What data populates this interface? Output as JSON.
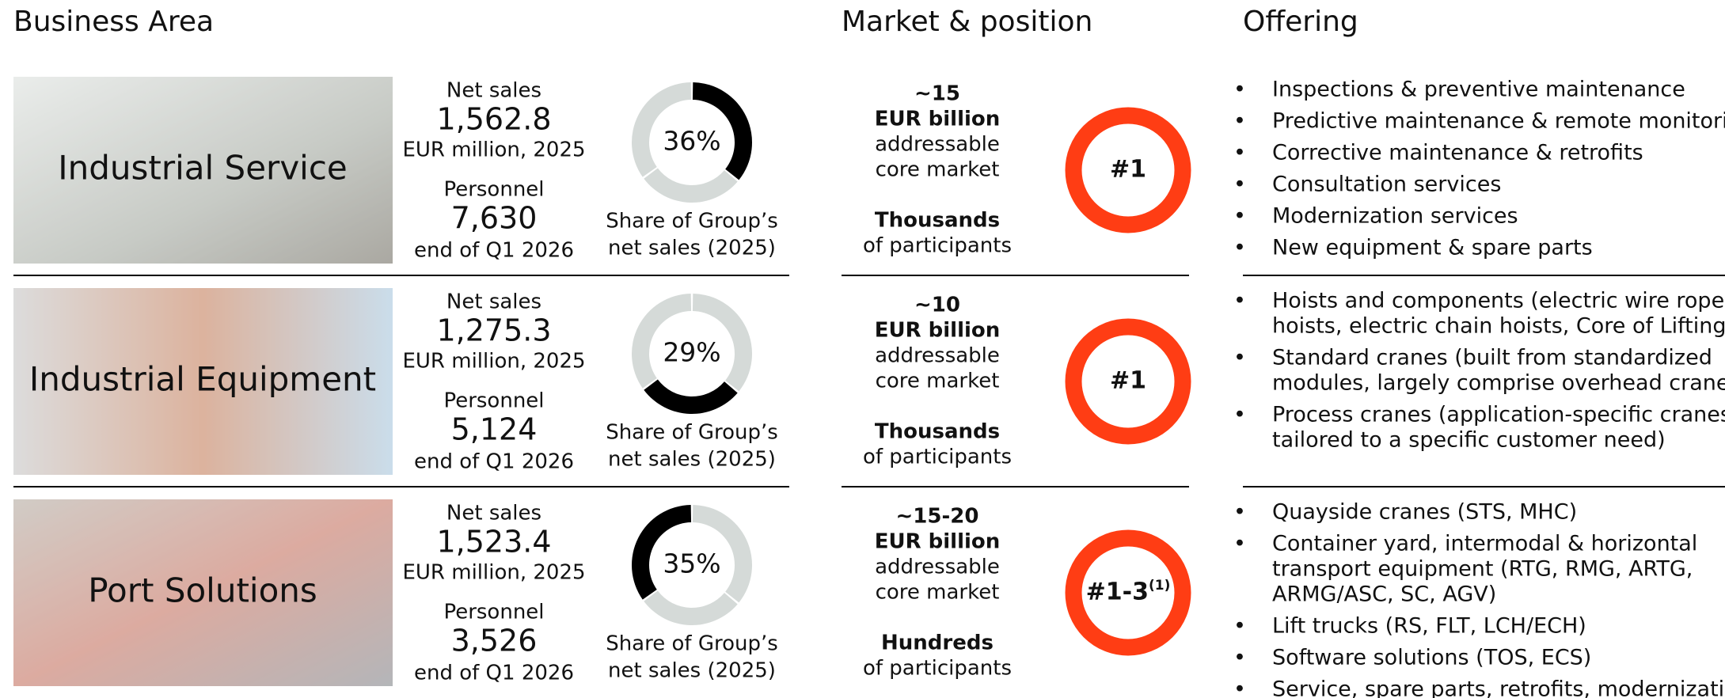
{
  "headers": {
    "business_area": "Business Area",
    "market": "Market & position",
    "offering": "Offering"
  },
  "rows": [
    {
      "name": "Industrial Service",
      "net_sales_label": "Net sales",
      "net_sales": "1,562.8",
      "net_sales_unit": "EUR million, 2025",
      "personnel_label": "Personnel",
      "personnel": "7,630",
      "personnel_unit": "end of Q1 2026",
      "share": 36,
      "share_label": "36%",
      "share_caption": [
        "Share of Group’s",
        "net sales (2025)"
      ],
      "market_size": "~15",
      "market_unit": "EUR billion",
      "market_desc": [
        "addressable",
        "core market"
      ],
      "participants": "Thousands",
      "participants_desc": "of participants",
      "position": "#1",
      "offering": [
        [
          "Inspections & preventive maintenance"
        ],
        [
          "Predictive maintenance & remote monitoring"
        ],
        [
          "Corrective maintenance & retrofits"
        ],
        [
          "Consultation services"
        ],
        [
          "Modernization services"
        ],
        [
          "New equipment & spare parts"
        ]
      ]
    },
    {
      "name": "Industrial Equipment",
      "net_sales_label": "Net sales",
      "net_sales": "1,275.3",
      "net_sales_unit": "EUR million, 2025",
      "personnel_label": "Personnel",
      "personnel": "5,124",
      "personnel_unit": "end of Q1 2026",
      "share": 29,
      "share_label": "29%",
      "share_caption": [
        "Share of Group’s",
        "net sales (2025)"
      ],
      "market_size": "~10",
      "market_unit": "EUR billion",
      "market_desc": [
        "addressable",
        "core market"
      ],
      "participants": "Thousands",
      "participants_desc": "of participants",
      "position": "#1",
      "offering": [
        [
          "Hoists and components (electric wire rope",
          "hoists, electric chain hoists, Core of Lifting)"
        ],
        [
          "Standard cranes (built from standardized",
          "modules, largely comprise overhead cranes)"
        ],
        [
          "Process cranes (application-specific cranes",
          "tailored to a specific customer need)"
        ]
      ]
    },
    {
      "name": "Port Solutions",
      "net_sales_label": "Net sales",
      "net_sales": "1,523.4",
      "net_sales_unit": "EUR million, 2025",
      "personnel_label": "Personnel",
      "personnel": "3,526",
      "personnel_unit": "end of Q1 2026",
      "share": 35,
      "share_label": "35%",
      "share_caption": [
        "Share of Group’s",
        "net sales (2025)"
      ],
      "market_size": "~15-20",
      "market_unit": "EUR billion",
      "market_desc": [
        "addressable",
        "core market"
      ],
      "participants": "Hundreds",
      "participants_desc": "of participants",
      "position": "#1-3",
      "position_note": "(1)",
      "offering": [
        [
          "Quayside cranes (STS, MHC)"
        ],
        [
          "Container yard, intermodal & horizontal",
          "transport equipment (RTG, RMG, ARTG,",
          "ARMG/ASC, SC, AGV)"
        ],
        [
          "Lift trucks (RS, FLT, LCH/ECH)"
        ],
        [
          "Software solutions (TOS, ECS)"
        ],
        [
          "Service, spare parts, retrofits, modernizations"
        ]
      ]
    }
  ]
}
